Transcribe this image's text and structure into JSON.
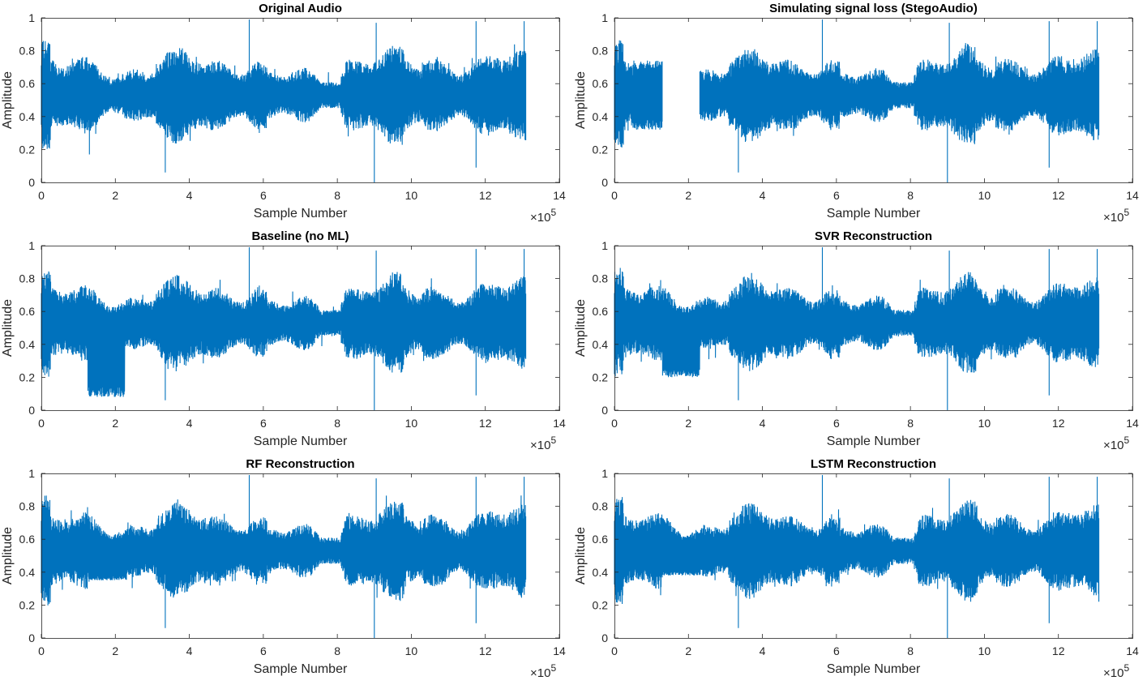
{
  "figure": {
    "line_color": "#0072BD",
    "axes_color": "#262626",
    "background": "#ffffff"
  },
  "chart_data": [
    {
      "type": "line",
      "title": "Original Audio",
      "xlabel": "Sample Number",
      "ylabel": "Amplitude",
      "x_exponent_label": "×10",
      "x_exponent": "5",
      "xlim": [
        0,
        14
      ],
      "ylim": [
        0,
        1
      ],
      "xticks": [
        0,
        2,
        4,
        6,
        8,
        10,
        12,
        14
      ],
      "yticks": [
        0,
        0.2,
        0.4,
        0.6,
        0.8,
        1
      ],
      "grid": false,
      "signal": {
        "x_end": 13.1,
        "center": 0.53,
        "gaps": [],
        "low_fill": [],
        "peaks": [
          [
            5.62,
            0.99
          ],
          [
            9.05,
            0.97
          ],
          [
            11.75,
            0.98
          ],
          [
            13.05,
            0.98
          ]
        ],
        "troughs": [
          [
            9.0,
            0.0
          ],
          [
            3.35,
            0.06
          ],
          [
            1.3,
            0.17
          ],
          [
            11.75,
            0.09
          ]
        ]
      }
    },
    {
      "type": "line",
      "title": "Simulating signal loss (StegoAudio)",
      "xlabel": "Sample Number",
      "ylabel": "Amplitude",
      "x_exponent_label": "×10",
      "x_exponent": "5",
      "xlim": [
        0,
        14
      ],
      "ylim": [
        0,
        1
      ],
      "xticks": [
        0,
        2,
        4,
        6,
        8,
        10,
        12,
        14
      ],
      "yticks": [
        0,
        0.2,
        0.4,
        0.6,
        0.8,
        1
      ],
      "grid": false,
      "signal": {
        "x_end": 13.1,
        "center": 0.53,
        "gaps": [
          [
            1.3,
            2.3
          ]
        ],
        "low_fill": [],
        "flat_segments": [
          [
            0.5,
            1.3,
            0.32,
            0.74
          ]
        ],
        "peaks": [
          [
            5.62,
            0.99
          ],
          [
            9.05,
            0.97
          ],
          [
            11.75,
            0.98
          ],
          [
            13.05,
            0.98
          ]
        ],
        "troughs": [
          [
            9.0,
            0.0
          ],
          [
            3.35,
            0.06
          ],
          [
            11.75,
            0.09
          ]
        ]
      }
    },
    {
      "type": "line",
      "title": "Baseline (no ML)",
      "xlabel": "Sample Number",
      "ylabel": "Amplitude",
      "x_exponent_label": "×10",
      "x_exponent": "5",
      "xlim": [
        0,
        14
      ],
      "ylim": [
        0,
        1
      ],
      "xticks": [
        0,
        2,
        4,
        6,
        8,
        10,
        12,
        14
      ],
      "yticks": [
        0,
        0.2,
        0.4,
        0.6,
        0.8,
        1
      ],
      "grid": false,
      "signal": {
        "x_end": 13.1,
        "center": 0.53,
        "gaps": [],
        "low_fill": [
          [
            1.25,
            2.25,
            0.08
          ]
        ],
        "peaks": [
          [
            5.62,
            0.99
          ],
          [
            9.05,
            0.97
          ],
          [
            11.75,
            0.98
          ],
          [
            13.05,
            0.98
          ]
        ],
        "troughs": [
          [
            9.0,
            0.0
          ],
          [
            3.35,
            0.06
          ],
          [
            11.75,
            0.09
          ]
        ]
      }
    },
    {
      "type": "line",
      "title": "SVR Reconstruction",
      "xlabel": "Sample Number",
      "ylabel": "Amplitude",
      "x_exponent_label": "×10",
      "x_exponent": "5",
      "xlim": [
        0,
        14
      ],
      "ylim": [
        0,
        1
      ],
      "xticks": [
        0,
        2,
        4,
        6,
        8,
        10,
        12,
        14
      ],
      "yticks": [
        0,
        0.2,
        0.4,
        0.6,
        0.8,
        1
      ],
      "grid": false,
      "signal": {
        "x_end": 13.1,
        "center": 0.53,
        "gaps": [],
        "low_fill": [
          [
            1.3,
            2.3,
            0.2
          ]
        ],
        "peaks": [
          [
            5.62,
            0.99
          ],
          [
            9.05,
            0.97
          ],
          [
            11.75,
            0.98
          ],
          [
            13.05,
            0.98
          ]
        ],
        "troughs": [
          [
            9.0,
            0.0
          ],
          [
            3.35,
            0.06
          ],
          [
            11.75,
            0.09
          ]
        ]
      }
    },
    {
      "type": "line",
      "title": "RF Reconstruction",
      "xlabel": "Sample Number",
      "ylabel": "Amplitude",
      "x_exponent_label": "×10",
      "x_exponent": "5",
      "xlim": [
        0,
        14
      ],
      "ylim": [
        0,
        1
      ],
      "xticks": [
        0,
        2,
        4,
        6,
        8,
        10,
        12,
        14
      ],
      "yticks": [
        0,
        0.2,
        0.4,
        0.6,
        0.8,
        1
      ],
      "grid": false,
      "signal": {
        "x_end": 13.1,
        "center": 0.53,
        "gaps": [],
        "low_fill": [
          [
            1.3,
            2.3,
            0.35
          ]
        ],
        "peaks": [
          [
            5.62,
            0.99
          ],
          [
            9.05,
            0.97
          ],
          [
            11.75,
            0.98
          ],
          [
            13.05,
            0.98
          ]
        ],
        "troughs": [
          [
            9.0,
            0.0
          ],
          [
            3.35,
            0.06
          ],
          [
            11.75,
            0.09
          ]
        ]
      }
    },
    {
      "type": "line",
      "title": "LSTM Reconstruction",
      "xlabel": "Sample Number",
      "ylabel": "Amplitude",
      "x_exponent_label": "×10",
      "x_exponent": "5",
      "xlim": [
        0,
        14
      ],
      "ylim": [
        0,
        1
      ],
      "xticks": [
        0,
        2,
        4,
        6,
        8,
        10,
        12,
        14
      ],
      "yticks": [
        0,
        0.2,
        0.4,
        0.6,
        0.8,
        1
      ],
      "grid": false,
      "signal": {
        "x_end": 13.1,
        "center": 0.53,
        "gaps": [],
        "low_fill": [
          [
            1.3,
            2.3,
            0.38
          ]
        ],
        "peaks": [
          [
            5.62,
            0.99
          ],
          [
            9.05,
            0.97
          ],
          [
            11.75,
            0.98
          ],
          [
            13.05,
            0.98
          ]
        ],
        "troughs": [
          [
            9.0,
            0.0
          ],
          [
            3.35,
            0.06
          ],
          [
            11.75,
            0.09
          ]
        ]
      }
    }
  ]
}
